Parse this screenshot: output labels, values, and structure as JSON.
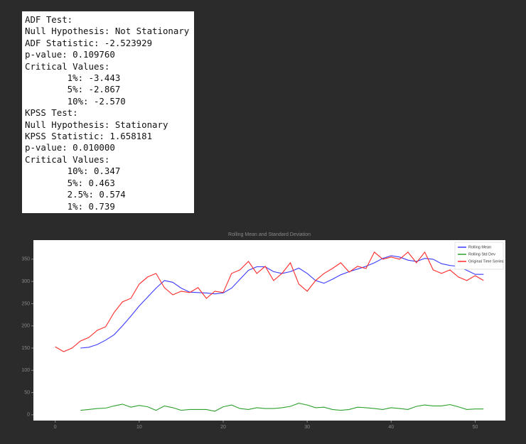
{
  "output_lines": [
    "ADF Test:",
    "Null Hypothesis: Not Stationary",
    "ADF Statistic: -2.523929",
    "p-value: 0.109760",
    "Critical Values:",
    "        1%: -3.443",
    "        5%: -2.867",
    "        10%: -2.570",
    "KPSS Test:",
    "Null Hypothesis: Stationary",
    "KPSS Statistic: 1.658181",
    "p-value: 0.010000",
    "Critical Values:",
    "        10%: 0.347",
    "        5%: 0.463",
    "        2.5%: 0.574",
    "        1%: 0.739"
  ],
  "chart_data": {
    "type": "line",
    "title": "Rolling Mean and Standard Deviation",
    "x": [
      0,
      1,
      2,
      3,
      4,
      5,
      6,
      7,
      8,
      9,
      10,
      11,
      12,
      13,
      14,
      15,
      16,
      17,
      18,
      19,
      20,
      21,
      22,
      23,
      24,
      25,
      26,
      27,
      28,
      29,
      30,
      31,
      32,
      33,
      34,
      35,
      36,
      37,
      38,
      39,
      40,
      41,
      42,
      43,
      44,
      45,
      46,
      47,
      48,
      49,
      50,
      51
    ],
    "series": [
      {
        "name": "Rolling Mean",
        "color": "#3b3bff",
        "values": [
          null,
          null,
          null,
          150,
          152,
          158,
          168,
          180,
          200,
          222,
          245,
          265,
          285,
          302,
          298,
          285,
          276,
          275,
          274,
          272,
          274,
          285,
          305,
          325,
          333,
          333,
          322,
          318,
          322,
          330,
          318,
          302,
          296,
          305,
          315,
          322,
          328,
          334,
          342,
          352,
          358,
          355,
          348,
          345,
          352,
          350,
          340,
          336,
          334,
          325,
          316,
          316
        ]
      },
      {
        "name": "Rolling Std Dev",
        "color": "#2ca02c",
        "values": [
          null,
          null,
          null,
          10,
          12,
          14,
          15,
          20,
          24,
          17,
          21,
          18,
          10,
          20,
          16,
          10,
          12,
          12,
          12,
          8,
          18,
          22,
          14,
          12,
          16,
          14,
          14,
          16,
          19,
          26,
          22,
          16,
          17,
          12,
          10,
          12,
          17,
          16,
          14,
          12,
          16,
          14,
          12,
          19,
          22,
          20,
          20,
          23,
          18,
          12,
          13,
          13
        ]
      },
      {
        "name": "Original Time Series",
        "color": "#ff2a2a",
        "values": [
          153,
          142,
          150,
          166,
          174,
          190,
          198,
          230,
          254,
          262,
          294,
          310,
          318,
          286,
          270,
          278,
          275,
          286,
          262,
          278,
          275,
          318,
          326,
          345,
          318,
          334,
          302,
          318,
          342,
          294,
          278,
          302,
          318,
          329,
          342,
          321,
          334,
          329,
          366,
          350,
          355,
          350,
          366,
          342,
          366,
          326,
          318,
          326,
          310,
          302,
          313,
          302
        ]
      }
    ],
    "xlim": [
      -2.6,
      53.6
    ],
    "ylim": [
      -13,
      393
    ],
    "xticks": [
      0,
      10,
      20,
      30,
      40,
      50
    ],
    "yticks": [
      0,
      50,
      100,
      150,
      200,
      250,
      300,
      350
    ],
    "legend": "upper right"
  }
}
